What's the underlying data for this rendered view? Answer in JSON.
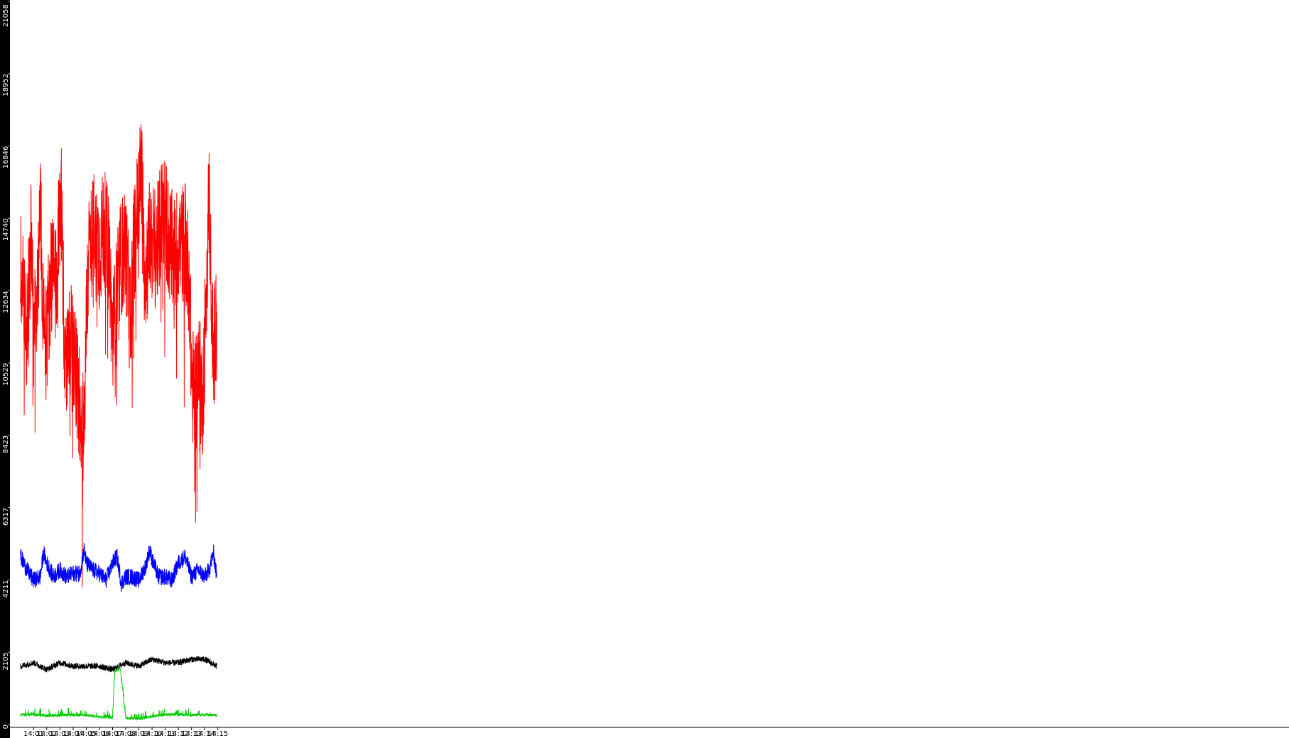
{
  "chart_data": {
    "type": "line",
    "title": "",
    "xlabel": "",
    "ylabel": "",
    "ylim": [
      0,
      21058
    ],
    "xlim_minutes": [
      13.992,
      14.964
    ],
    "y_ticks": [
      "0",
      "2105",
      "4211",
      "6317",
      "8423",
      "10529",
      "12634",
      "14740",
      "16846",
      "18952",
      "21058"
    ],
    "x_ticks": [
      "14:01",
      "14:02",
      "14:03",
      "14:04",
      "14:05",
      "14:06",
      "14:07",
      "14:08",
      "14:09",
      "14:10",
      "14:11",
      "14:12",
      "14:13",
      "14:14",
      "14:15"
    ],
    "x_tick_minutes": [
      14.01,
      14.02,
      14.03,
      14.04,
      14.05,
      14.06,
      14.07,
      14.08,
      14.09,
      14.1,
      14.11,
      14.12,
      14.13,
      14.14,
      14.15
    ],
    "grid": false,
    "legend": "none",
    "series": [
      {
        "color": "#ff0000",
        "x": [
          "14:00:00",
          "14:00:30",
          "14:00:40",
          "14:00:50",
          "14:01:00",
          "14:01:20",
          "14:01:30",
          "14:01:45",
          "14:02:00",
          "14:02:20",
          "14:02:40",
          "14:02:55",
          "14:03:05",
          "14:03:20",
          "14:03:40",
          "14:03:50",
          "14:04:00",
          "14:04:20",
          "14:04:40",
          "14:04:50",
          "14:05:00",
          "14:05:10",
          "14:05:30",
          "14:06:00",
          "14:06:20",
          "14:06:45",
          "14:07:00",
          "14:07:20",
          "14:07:40",
          "14:08:00",
          "14:08:20",
          "14:08:40",
          "14:08:55",
          "14:09:10",
          "14:09:30",
          "14:09:50",
          "14:10:00",
          "14:10:20",
          "14:10:40",
          "14:10:50",
          "14:11:00",
          "14:11:20",
          "14:11:40",
          "14:12:00",
          "14:12:15",
          "14:12:30",
          "14:12:50",
          "14:13:00",
          "14:13:15",
          "14:13:30",
          "14:13:50",
          "14:14:00",
          "14:14:10",
          "14:14:20",
          "14:14:40",
          "14:14:55"
        ],
        "y": [
          13500,
          11500,
          13200,
          14200,
          10800,
          13400,
          15200,
          12000,
          11400,
          13200,
          12800,
          14400,
          15800,
          10800,
          10700,
          11200,
          10900,
          9800,
          8900,
          8700,
          11700,
          13600,
          14400,
          13800,
          14500,
          13600,
          11200,
          12600,
          13600,
          13900,
          11700,
          14200,
          15100,
          16200,
          13100,
          14200,
          14100,
          13800,
          14600,
          15100,
          14800,
          14000,
          13600,
          14000,
          13900,
          14200,
          12900,
          10200,
          9400,
          10400,
          9500,
          11100,
          13700,
          15400,
          10300,
          12600
        ]
      },
      {
        "color": "#0000ff",
        "x": [
          "14:00:00",
          "14:00:30",
          "14:01:00",
          "14:01:30",
          "14:01:45",
          "14:02:00",
          "14:02:30",
          "14:03:00",
          "14:03:30",
          "14:04:00",
          "14:04:30",
          "14:04:50",
          "14:05:00",
          "14:05:30",
          "14:06:00",
          "14:06:30",
          "14:07:00",
          "14:07:20",
          "14:07:40",
          "14:08:00",
          "14:08:30",
          "14:09:00",
          "14:09:30",
          "14:09:50",
          "14:10:00",
          "14:10:30",
          "14:11:00",
          "14:11:30",
          "14:12:00",
          "14:12:30",
          "14:13:00",
          "14:13:30",
          "14:14:00",
          "14:14:20",
          "14:14:40",
          "14:14:55"
        ],
        "y": [
          4900,
          4500,
          4200,
          4300,
          5000,
          4700,
          4300,
          4500,
          4300,
          4400,
          4400,
          5100,
          4700,
          4500,
          4400,
          4200,
          4700,
          4900,
          4100,
          4300,
          4300,
          4200,
          4600,
          5100,
          4800,
          4300,
          4300,
          4200,
          4700,
          4900,
          4300,
          4500,
          4300,
          4500,
          5000,
          4300
        ]
      },
      {
        "color": "#000000",
        "x": [
          "14:00:00",
          "14:01:00",
          "14:02:00",
          "14:03:00",
          "14:04:00",
          "14:05:00",
          "14:06:00",
          "14:07:00",
          "14:08:00",
          "14:09:00",
          "14:10:00",
          "14:11:00",
          "14:12:00",
          "14:13:00",
          "14:14:00",
          "14:14:55"
        ],
        "y": [
          1700,
          1800,
          1600,
          1800,
          1700,
          1700,
          1700,
          1600,
          1800,
          1700,
          1900,
          1800,
          1800,
          1900,
          1900,
          1700
        ]
      },
      {
        "color": "#00cc00",
        "x": [
          "14:00:00",
          "14:01:00",
          "14:02:00",
          "14:03:00",
          "14:04:00",
          "14:05:00",
          "14:06:00",
          "14:07:00",
          "14:07:10",
          "14:07:35",
          "14:08:00",
          "14:09:00",
          "14:10:00",
          "14:11:00",
          "14:12:00",
          "14:13:00",
          "14:14:00",
          "14:14:55"
        ],
        "y": [
          250,
          250,
          220,
          230,
          240,
          230,
          180,
          160,
          1500,
          1600,
          150,
          120,
          200,
          250,
          250,
          240,
          250,
          220
        ]
      }
    ]
  }
}
